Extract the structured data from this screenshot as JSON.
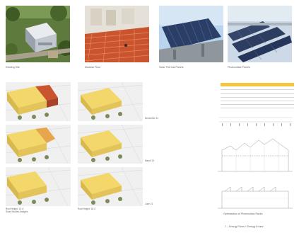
{
  "photos": [
    {
      "caption": "Existing Site"
    },
    {
      "caption": "Modular Floor"
    },
    {
      "caption": "Solar Thermal Panels"
    },
    {
      "caption": "Photovoltaic Panels"
    }
  ],
  "render_labels": {
    "december": "December 21",
    "march": "March 21",
    "june": "June 21",
    "roof_height_left": "Roof Height: 12.4'",
    "study_left": "Solar Studies Analysis",
    "roof_height_right": "Roof Height: 18.4'"
  },
  "energy_table": {
    "rows": [
      [
        "",
        "",
        "",
        ""
      ],
      [
        "",
        "",
        "",
        ""
      ],
      [
        "",
        "",
        "",
        ""
      ],
      [
        "",
        "",
        "",
        ""
      ],
      [
        "",
        "",
        "",
        ""
      ],
      [
        "",
        "",
        "",
        ""
      ]
    ]
  },
  "section_label": "Optimization of Photovoltaic Racks",
  "footer": "7 – Energy Flows + Energy Found",
  "colors": {
    "roof_yellow": "#f3d76b",
    "roof_red": "#c9542e",
    "table_header": "#f5c542",
    "panel_blue": "#2b3f66"
  }
}
